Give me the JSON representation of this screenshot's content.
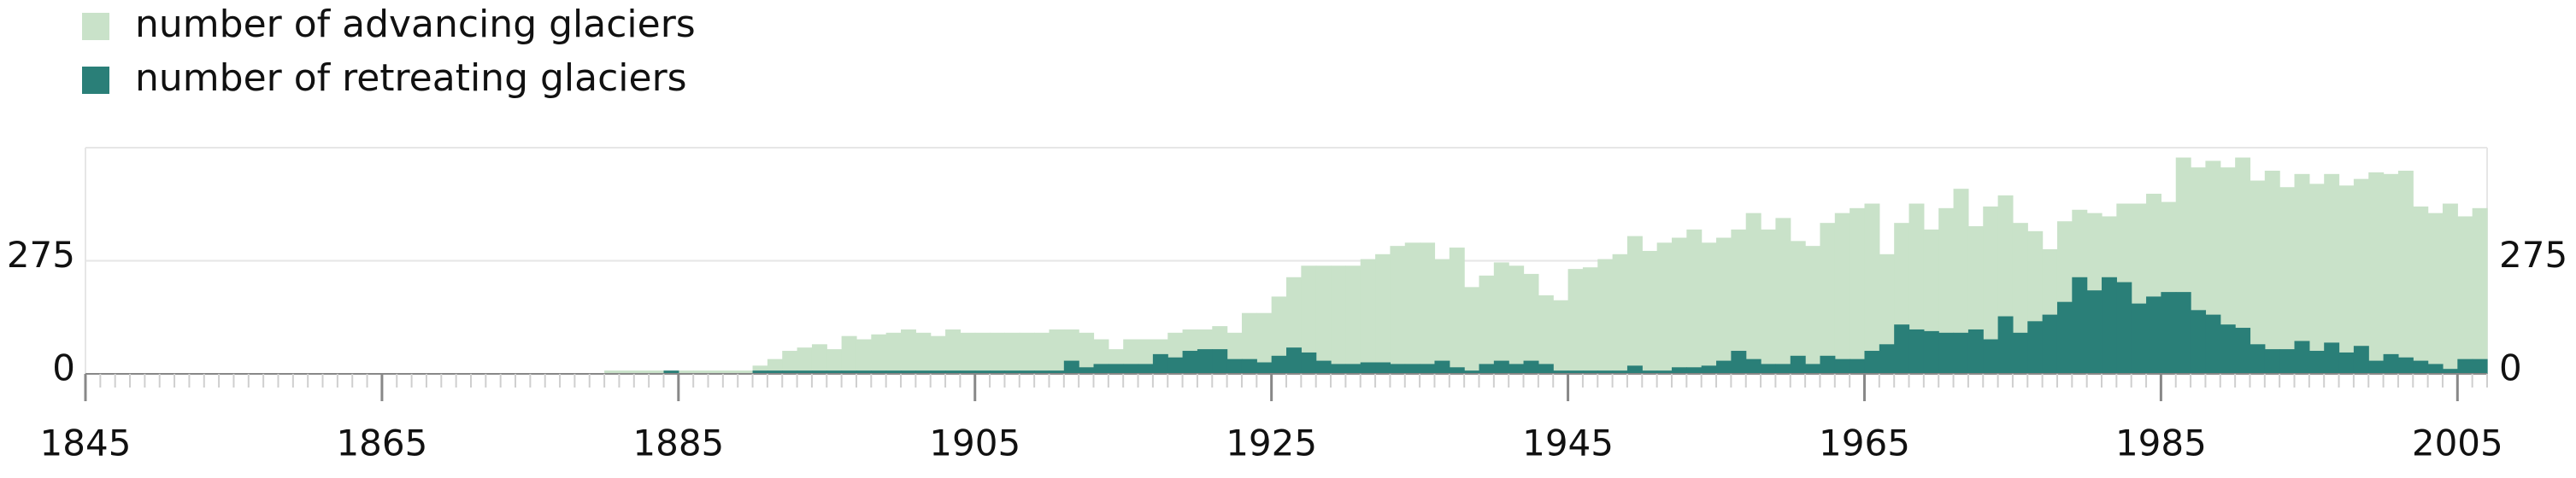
{
  "chart_data": {
    "type": "bar",
    "x": [
      1880,
      1881,
      1882,
      1883,
      1884,
      1885,
      1886,
      1887,
      1888,
      1889,
      1890,
      1891,
      1892,
      1893,
      1894,
      1895,
      1896,
      1897,
      1898,
      1899,
      1900,
      1901,
      1902,
      1903,
      1904,
      1905,
      1906,
      1907,
      1908,
      1909,
      1910,
      1911,
      1912,
      1913,
      1914,
      1915,
      1916,
      1917,
      1918,
      1919,
      1920,
      1921,
      1922,
      1923,
      1924,
      1925,
      1926,
      1927,
      1928,
      1929,
      1930,
      1931,
      1932,
      1933,
      1934,
      1935,
      1936,
      1937,
      1938,
      1939,
      1940,
      1941,
      1942,
      1943,
      1944,
      1945,
      1946,
      1947,
      1948,
      1949,
      1950,
      1951,
      1952,
      1953,
      1954,
      1955,
      1956,
      1957,
      1958,
      1959,
      1960,
      1961,
      1962,
      1963,
      1964,
      1965,
      1966,
      1967,
      1968,
      1969,
      1970,
      1971,
      1972,
      1973,
      1974,
      1975,
      1976,
      1977,
      1978,
      1979,
      1980,
      1981,
      1982,
      1983,
      1984,
      1985,
      1986,
      1987,
      1988,
      1989,
      1990,
      1991,
      1992,
      1993,
      1994,
      1995,
      1996,
      1997,
      1998,
      1999,
      2000,
      2001,
      2002,
      2003,
      2004,
      2005,
      2006
    ],
    "series": [
      {
        "name": "number of advancing glaciers",
        "color": "#c9e2c9",
        "values": [
          8,
          8,
          8,
          8,
          8,
          8,
          8,
          8,
          8,
          8,
          20,
          36,
          56,
          64,
          72,
          60,
          92,
          84,
          96,
          100,
          108,
          100,
          92,
          108,
          100,
          100,
          100,
          100,
          100,
          100,
          108,
          108,
          100,
          84,
          60,
          84,
          84,
          84,
          100,
          108,
          108,
          116,
          100,
          148,
          148,
          188,
          235,
          263,
          263,
          263,
          263,
          279,
          291,
          311,
          319,
          319,
          279,
          307,
          211,
          239,
          271,
          263,
          243,
          191,
          179,
          255,
          259,
          279,
          291,
          335,
          299,
          319,
          331,
          351,
          319,
          331,
          351,
          391,
          351,
          379,
          323,
          311,
          367,
          391,
          403,
          414,
          291,
          367,
          414,
          351,
          403,
          450,
          359,
          407,
          434,
          367,
          347,
          303,
          371,
          399,
          391,
          383,
          414,
          414,
          438,
          418,
          526,
          502,
          518,
          502,
          526,
          470,
          494,
          454,
          486,
          462,
          486,
          458,
          474,
          490,
          486,
          494,
          407,
          391,
          414,
          383,
          403
        ]
      },
      {
        "name": "number of retreating glaciers",
        "color": "#2a7f78",
        "values": [
          0,
          0,
          0,
          0,
          8,
          0,
          0,
          0,
          0,
          0,
          8,
          8,
          8,
          8,
          8,
          8,
          8,
          8,
          8,
          8,
          8,
          8,
          8,
          8,
          8,
          8,
          8,
          8,
          8,
          8,
          8,
          32,
          16,
          24,
          24,
          24,
          24,
          48,
          40,
          56,
          60,
          60,
          36,
          36,
          28,
          44,
          64,
          52,
          32,
          24,
          24,
          28,
          28,
          24,
          24,
          24,
          32,
          16,
          8,
          24,
          32,
          24,
          32,
          24,
          8,
          8,
          8,
          8,
          8,
          20,
          8,
          8,
          16,
          16,
          20,
          32,
          56,
          36,
          24,
          24,
          44,
          24,
          44,
          36,
          36,
          56,
          72,
          120,
          108,
          104,
          100,
          100,
          108,
          84,
          140,
          100,
          128,
          144,
          175,
          235,
          203,
          235,
          223,
          171,
          188,
          199,
          199,
          155,
          144,
          120,
          112,
          72,
          60,
          60,
          80,
          56,
          76,
          52,
          68,
          32,
          48,
          40,
          32,
          24,
          12,
          36,
          36
        ]
      }
    ],
    "xlim": [
      1845,
      2007
    ],
    "xticks": [
      1845,
      1865,
      1885,
      1905,
      1925,
      1945,
      1965,
      1985,
      2005
    ],
    "ylim": [
      0,
      550
    ],
    "yticks": [
      0,
      275
    ],
    "grid": true
  }
}
